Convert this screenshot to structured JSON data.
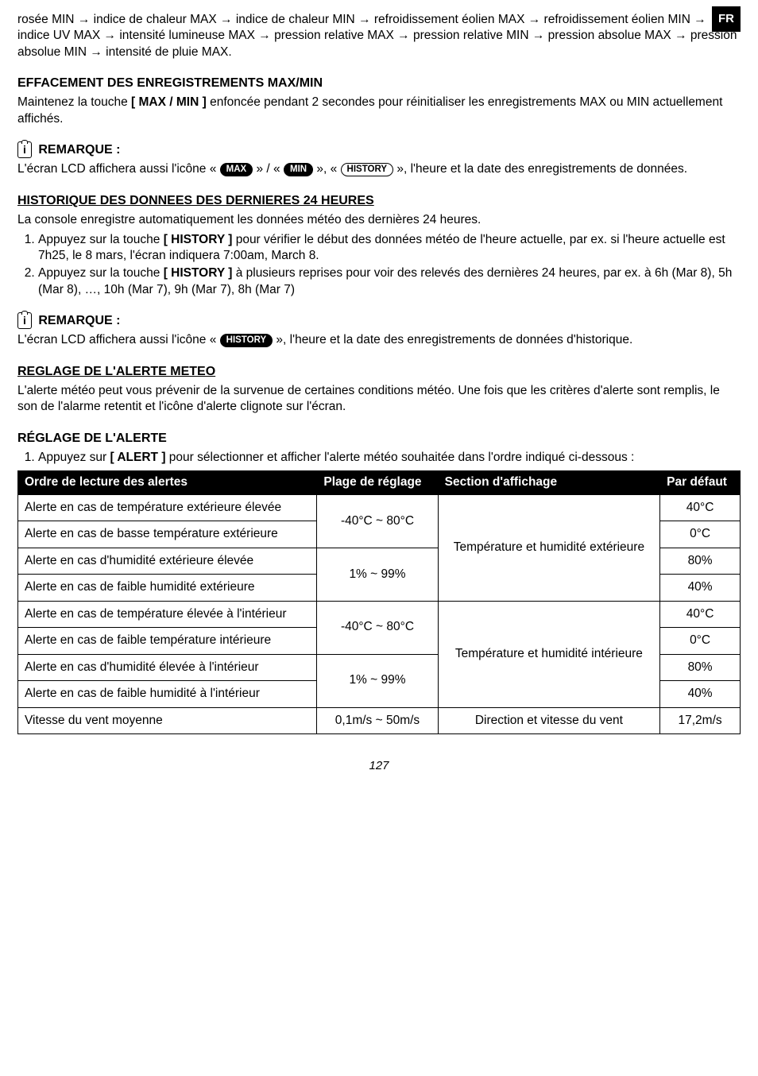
{
  "badge": "FR",
  "top_sequence_labels": {
    "rosee_min": "rosée MIN",
    "chaleur_max": "indice de chaleur MAX",
    "chaleur_min": "indice de chaleur MIN",
    "eolien_max": "refroidissement éolien MAX",
    "eolien_min": "refroidissement éolien MIN",
    "uv_max": "indice UV MAX",
    "lum_max": "intensité lumineuse MAX",
    "prel_max": "pression relative MAX",
    "prel_min": "pression relative MIN",
    "pabs_max": "pression absolue MAX",
    "pabs_min": "pression absolue MIN",
    "pluie_max": "intensité de pluie MAX."
  },
  "eff": {
    "title": "EFFACEMENT DES ENREGISTREMENTS MAX/MIN",
    "p1a": "Maintenez la touche ",
    "p1b": "[ MAX / MIN ]",
    "p1c": " enfoncée pendant 2 secondes pour réinitialiser les enregistrements MAX ou MIN actuellement affichés."
  },
  "rem1": {
    "title": "REMARQUE :",
    "p1a": "L'écran LCD affichera aussi l'icône « ",
    "pill_max": "MAX",
    "mid1": " » / « ",
    "pill_min": "MIN",
    "mid2": " », « ",
    "pill_hist": "HISTORY",
    "p1b": " », l'heure et la date des enregistrements de données."
  },
  "hist": {
    "title": "HISTORIQUE DES DONNEES DES DERNIERES 24 HEURES",
    "p1": "La console enregistre automatiquement les données météo des dernières 24 heures.",
    "li1a": "Appuyez sur la touche ",
    "li1b": "[ HISTORY ]",
    "li1c": " pour vérifier le début des données météo de l'heure actuelle, par ex. si l'heure actuelle est 7h25, le 8 mars, l'écran indiquera 7:00am, March 8.",
    "li2a": "Appuyez sur la touche ",
    "li2b": "[ HISTORY ]",
    "li2c": " à plusieurs reprises pour voir des relevés des dernières 24 heures, par ex. à 6h (Mar 8), 5h (Mar 8), …, 10h (Mar 7), 9h (Mar 7), 8h (Mar 7)"
  },
  "rem2": {
    "title": "REMARQUE :",
    "p1a": "L'écran LCD affichera aussi l'icône « ",
    "pill_hist": "HISTORY",
    "p1b": " », l'heure et la date des enregistrements de données d'historique."
  },
  "reg": {
    "title": "REGLAGE DE L'ALERTE METEO",
    "p1": "L'alerte météo peut vous prévenir de la survenue de certaines conditions météo. Une fois que les critères d'alerte sont remplis, le son de l'alarme retentit et l'icône d'alerte clignote sur l'écran."
  },
  "regal": {
    "title": "RÉGLAGE DE L'ALERTE",
    "li1a": "Appuyez sur ",
    "li1b": "[ ALERT ]",
    "li1c": " pour sélectionner et afficher l'alerte météo souhaitée dans l'ordre indiqué ci-dessous :"
  },
  "table": {
    "headers": {
      "c1": "Ordre de lecture des alertes",
      "c2": "Plage de réglage",
      "c3": "Section d'affichage",
      "c4": "Par défaut"
    },
    "range_temp": "-40°C ~ 80°C",
    "range_hum": "1% ~ 99%",
    "rows": {
      "r1": {
        "label": "Alerte en cas de température extérieure élevée",
        "def": "40°C"
      },
      "r2": {
        "label": "Alerte en cas de basse température extérieure",
        "def": "0°C"
      },
      "r3": {
        "label": "Alerte en cas d'humidité extérieure élevée",
        "def": "80%"
      },
      "r4": {
        "label": "Alerte en cas de faible humidité extérieure",
        "def": "40%"
      },
      "r5": {
        "label": "Alerte en cas de température élevée à l'intérieur",
        "def": "40°C"
      },
      "r6": {
        "label": "Alerte en cas de faible température intérieure",
        "def": "0°C"
      },
      "r7": {
        "label": "Alerte en cas d'humidité élevée à l'intérieur",
        "def": "80%"
      },
      "r8": {
        "label": "Alerte en cas de faible humidité à l'intérieur",
        "def": "40%"
      },
      "r9": {
        "label": "Vitesse du vent moyenne",
        "range": "0,1m/s ~ 50m/s",
        "section": "Direction et vitesse du vent",
        "def": "17,2m/s"
      }
    },
    "section_ext": "Température et humidité extérieure",
    "section_int": "Température et humidité intérieure"
  },
  "page": "127",
  "arrow": "→"
}
